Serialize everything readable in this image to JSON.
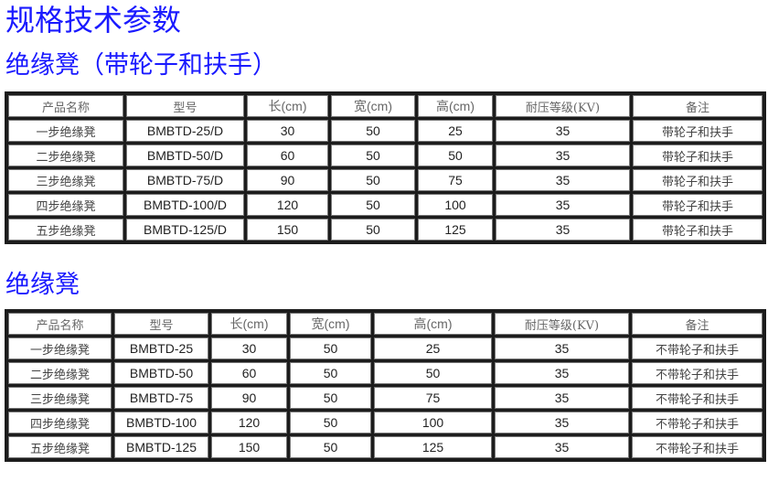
{
  "title": "规格技术参数",
  "sections": [
    {
      "heading": "绝缘凳（带轮子和扶手）",
      "headers": [
        "产品名称",
        "型号",
        "长(cm)",
        "宽(cm)",
        "高(cm)",
        "耐压等级(KV)",
        "备注"
      ],
      "rows": [
        [
          "一步绝缘凳",
          "BMBTD-25/D",
          "30",
          "50",
          "25",
          "35",
          "带轮子和扶手"
        ],
        [
          "二步绝缘凳",
          "BMBTD-50/D",
          "60",
          "50",
          "50",
          "35",
          "带轮子和扶手"
        ],
        [
          "三步绝缘凳",
          "BMBTD-75/D",
          "90",
          "50",
          "75",
          "35",
          "带轮子和扶手"
        ],
        [
          "四步绝缘凳",
          "BMBTD-100/D",
          "120",
          "50",
          "100",
          "35",
          "带轮子和扶手"
        ],
        [
          "五步绝缘凳",
          "BMBTD-125/D",
          "150",
          "50",
          "125",
          "35",
          "带轮子和扶手"
        ]
      ]
    },
    {
      "heading": "绝缘凳",
      "headers": [
        "产品名称",
        "型号",
        "长(cm)",
        "宽(cm)",
        "高(cm)",
        "耐压等级(KV)",
        "备注"
      ],
      "rows": [
        [
          "一步绝缘凳",
          "BMBTD-25",
          "30",
          "50",
          "25",
          "35",
          "不带轮子和扶手"
        ],
        [
          "二步绝缘凳",
          "BMBTD-50",
          "60",
          "50",
          "50",
          "35",
          "不带轮子和扶手"
        ],
        [
          "三步绝缘凳",
          "BMBTD-75",
          "90",
          "50",
          "75",
          "35",
          "不带轮子和扶手"
        ],
        [
          "四步绝缘凳",
          "BMBTD-100",
          "120",
          "50",
          "100",
          "35",
          "不带轮子和扶手"
        ],
        [
          "五步绝缘凳",
          "BMBTD-125",
          "150",
          "50",
          "125",
          "35",
          "不带轮子和扶手"
        ]
      ]
    }
  ],
  "colors": {
    "heading": "#1a1aff",
    "table_border": "#1c1c1c"
  }
}
